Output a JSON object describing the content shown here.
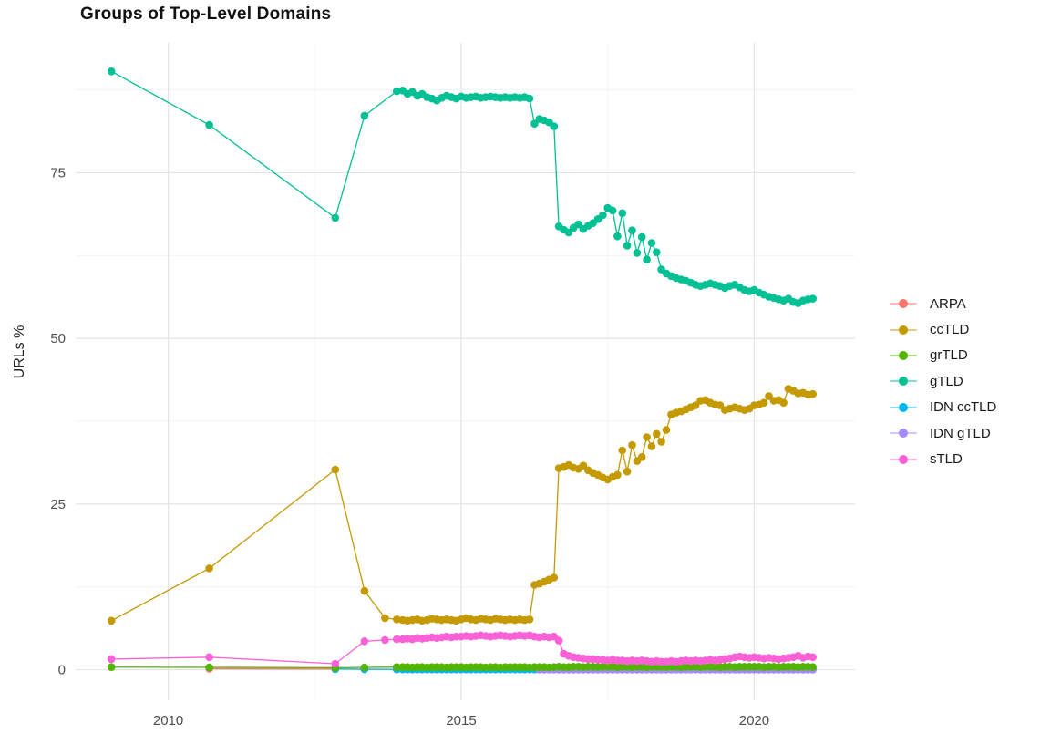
{
  "chart": {
    "title": "Groups of Top-Level Domains",
    "ylabel": "URLs %"
  },
  "legend": {
    "items": [
      {
        "label": "ARPA",
        "color": "#F8766D"
      },
      {
        "label": "ccTLD",
        "color": "#C49A00"
      },
      {
        "label": "grTLD",
        "color": "#53B400"
      },
      {
        "label": "gTLD",
        "color": "#00C094"
      },
      {
        "label": "IDN ccTLD",
        "color": "#00B6EB"
      },
      {
        "label": "IDN gTLD",
        "color": "#A58AFF"
      },
      {
        "label": "sTLD",
        "color": "#FB61D7"
      }
    ]
  },
  "chart_data": {
    "type": "line",
    "title": "Groups of Top-Level Domains",
    "xlabel": "",
    "ylabel": "URLs %",
    "xlim": [
      2008.42,
      2021.72
    ],
    "ylim": [
      -4.6,
      94.6
    ],
    "x_ticks": [
      2010,
      2015,
      2020
    ],
    "x_minor": [
      2012.5,
      2017.5
    ],
    "y_ticks": [
      0,
      25,
      50,
      75
    ],
    "y_minor": [
      12.5,
      37.5,
      62.5,
      87.5
    ],
    "grid": true,
    "legend_position": "right",
    "axis_text_color": "#4d4d4d",
    "grid_major_color": "#e4e4e4",
    "grid_minor_color": "#f3f3f3",
    "series": [
      {
        "name": "ARPA",
        "color": "#F8766D",
        "pre": [
          [
            2010.7,
            0.15
          ],
          [
            2012.85,
            0.1
          ],
          [
            2013.35,
            0.08
          ],
          [
            2013.9,
            0.06
          ]
        ],
        "monthly_start": 2014.0,
        "monthly_values": [
          0.05,
          0.05,
          0.05,
          0.05,
          0.05,
          0.05,
          0.05,
          0.05,
          0.05,
          0.05,
          0.05,
          0.05,
          0.05,
          0.05,
          0.05,
          0.05,
          0.05,
          0.05,
          0.05,
          0.05,
          0.05,
          0.05,
          0.05,
          0.05,
          0.05,
          0.05,
          0.05,
          0.05,
          0.05,
          0.05,
          0.05,
          0.05,
          0.05,
          0.05,
          0.05,
          0.05,
          0.05,
          0.05,
          0.05,
          0.05,
          0.05,
          0.05,
          0.05,
          0.05,
          0.05,
          0.05,
          0.05,
          0.05,
          0.05,
          0.05,
          0.05,
          0.05,
          0.05,
          0.05,
          0.05,
          0.05,
          0.05,
          0.05,
          0.05,
          0.05,
          0.05,
          0.05,
          0.05,
          0.05,
          0.05,
          0.05,
          0.05,
          0.05,
          0.05,
          0.05,
          0.05,
          0.05,
          0.05,
          0.05,
          0.05,
          0.05,
          0.05,
          0.05,
          0.05,
          0.05,
          0.05,
          0.05,
          0.05,
          0.05,
          0.05
        ]
      },
      {
        "name": "IDN ccTLD",
        "color": "#00B6EB",
        "pre": [
          [
            2012.85,
            0.1
          ],
          [
            2013.35,
            0.08
          ],
          [
            2013.9,
            0.06
          ]
        ],
        "monthly_start": 2014.0,
        "monthly_values": [
          0.05,
          0.05,
          0.05,
          0.05,
          0.05,
          0.05,
          0.05,
          0.05,
          0.05,
          0.05,
          0.05,
          0.05,
          0.05,
          0.05,
          0.05,
          0.05,
          0.05,
          0.05,
          0.05,
          0.05,
          0.05,
          0.05,
          0.05,
          0.05,
          0.05,
          0.05,
          0.05,
          0.05,
          0.05,
          0.05,
          0.05,
          0.05,
          0.05,
          0.05,
          0.05,
          0.05,
          0.05,
          0.05,
          0.05,
          0.05,
          0.05,
          0.05,
          0.05,
          0.05,
          0.05,
          0.05,
          0.05,
          0.05,
          0.05,
          0.05,
          0.05,
          0.05,
          0.05,
          0.05,
          0.05,
          0.05,
          0.05,
          0.05,
          0.05,
          0.05,
          0.05,
          0.05,
          0.05,
          0.05,
          0.05,
          0.05,
          0.05,
          0.05,
          0.05,
          0.05,
          0.05,
          0.05,
          0.05,
          0.05,
          0.05,
          0.05,
          0.05,
          0.05,
          0.05,
          0.05,
          0.05,
          0.05,
          0.05,
          0.05,
          0.05
        ]
      },
      {
        "name": "IDN gTLD",
        "color": "#A58AFF",
        "pre": [],
        "monthly_start": 2016.3333,
        "monthly_values": [
          0.02,
          0.02,
          0.02,
          0.02,
          0.02,
          0.02,
          0.02,
          0.02,
          0.02,
          0.02,
          0.02,
          0.02,
          0.02,
          0.02,
          0.02,
          0.02,
          0.02,
          0.02,
          0.02,
          0.02,
          0.02,
          0.02,
          0.02,
          0.02,
          0.02,
          0.02,
          0.02,
          0.02,
          0.02,
          0.02,
          0.02,
          0.02,
          0.02,
          0.02,
          0.02,
          0.02,
          0.02,
          0.02,
          0.02,
          0.02,
          0.02,
          0.02,
          0.02,
          0.02,
          0.02,
          0.02,
          0.02,
          0.02,
          0.02,
          0.02,
          0.02,
          0.02,
          0.02,
          0.02,
          0.02,
          0.02,
          0.02
        ]
      },
      {
        "name": "ccTLD",
        "color": "#C49A00",
        "pre": [
          [
            2009.03,
            7.4
          ],
          [
            2010.7,
            15.3
          ],
          [
            2012.85,
            30.2
          ],
          [
            2013.35,
            11.9
          ],
          [
            2013.7,
            7.8
          ],
          [
            2013.9,
            7.6
          ]
        ],
        "monthly_start": 2014.0,
        "monthly_values": [
          7.5,
          7.4,
          7.5,
          7.6,
          7.4,
          7.5,
          7.7,
          7.6,
          7.5,
          7.6,
          7.5,
          7.4,
          7.6,
          7.8,
          7.6,
          7.5,
          7.7,
          7.6,
          7.5,
          7.7,
          7.6,
          7.5,
          7.6,
          7.5,
          7.6,
          7.5,
          7.6,
          12.8,
          13.0,
          13.3,
          13.6,
          13.9,
          30.4,
          30.6,
          30.9,
          30.5,
          30.3,
          30.8,
          30.1,
          29.7,
          29.4,
          29.0,
          28.7,
          29.1,
          29.4,
          33.1,
          29.9,
          33.9,
          31.5,
          32.1,
          35.1,
          33.7,
          35.6,
          34.4,
          36.2,
          38.5,
          38.8,
          39.0,
          39.3,
          39.6,
          39.9,
          40.6,
          40.7,
          40.3,
          40.0,
          39.9,
          39.2,
          39.4,
          39.6,
          39.4,
          39.2,
          39.4,
          39.9,
          40.0,
          40.3,
          41.3,
          40.6,
          40.7,
          40.3,
          42.4,
          42.1,
          41.7,
          41.8,
          41.5,
          41.6
        ]
      },
      {
        "name": "gTLD",
        "color": "#00C094",
        "pre": [
          [
            2009.03,
            90.3
          ],
          [
            2010.7,
            82.2
          ],
          [
            2012.85,
            68.2
          ],
          [
            2013.35,
            83.6
          ],
          [
            2013.9,
            87.3
          ]
        ],
        "monthly_start": 2014.0,
        "monthly_values": [
          87.4,
          86.9,
          87.2,
          86.6,
          86.9,
          86.4,
          86.2,
          85.9,
          86.3,
          86.6,
          86.4,
          86.2,
          86.5,
          86.3,
          86.4,
          86.5,
          86.3,
          86.4,
          86.5,
          86.4,
          86.3,
          86.4,
          86.3,
          86.4,
          86.3,
          86.4,
          86.2,
          82.4,
          83.1,
          82.9,
          82.6,
          82.0,
          66.9,
          66.4,
          66.0,
          66.7,
          67.2,
          66.5,
          67.0,
          67.4,
          68.0,
          68.6,
          69.7,
          69.3,
          65.4,
          68.9,
          64.0,
          66.3,
          62.9,
          65.3,
          61.9,
          64.4,
          63.0,
          60.4,
          59.8,
          59.4,
          59.1,
          58.9,
          58.7,
          58.4,
          58.1,
          57.9,
          58.1,
          58.3,
          58.1,
          57.9,
          57.6,
          57.9,
          58.1,
          57.7,
          57.3,
          57.1,
          57.3,
          56.9,
          56.6,
          56.3,
          56.1,
          55.9,
          55.7,
          56.0,
          55.5,
          55.3,
          55.7,
          55.9,
          56.0
        ]
      },
      {
        "name": "grTLD",
        "color": "#53B400",
        "pre": [
          [
            2009.03,
            0.4
          ],
          [
            2010.7,
            0.35
          ],
          [
            2012.85,
            0.3
          ],
          [
            2013.35,
            0.35
          ],
          [
            2013.9,
            0.4
          ]
        ],
        "monthly_start": 2014.0,
        "monthly_values": [
          0.4,
          0.4,
          0.35,
          0.4,
          0.4,
          0.35,
          0.4,
          0.4,
          0.4,
          0.35,
          0.4,
          0.4,
          0.4,
          0.35,
          0.4,
          0.4,
          0.4,
          0.35,
          0.4,
          0.4,
          0.35,
          0.4,
          0.4,
          0.4,
          0.4,
          0.4,
          0.35,
          0.4,
          0.4,
          0.4,
          0.35,
          0.4,
          0.45,
          0.4,
          0.4,
          0.45,
          0.45,
          0.4,
          0.45,
          0.45,
          0.4,
          0.45,
          0.45,
          0.45,
          0.4,
          0.45,
          0.45,
          0.4,
          0.45,
          0.45,
          0.4,
          0.45,
          0.45,
          0.45,
          0.4,
          0.45,
          0.45,
          0.4,
          0.45,
          0.45,
          0.45,
          0.4,
          0.45,
          0.45,
          0.45,
          0.4,
          0.45,
          0.45,
          0.4,
          0.45,
          0.45,
          0.45,
          0.45,
          0.45,
          0.4,
          0.45,
          0.45,
          0.4,
          0.45,
          0.45,
          0.45,
          0.4,
          0.45,
          0.45,
          0.4
        ]
      },
      {
        "name": "sTLD",
        "color": "#FB61D7",
        "pre": [
          [
            2009.03,
            1.6
          ],
          [
            2010.7,
            1.9
          ],
          [
            2012.85,
            0.9
          ],
          [
            2013.35,
            4.3
          ],
          [
            2013.7,
            4.5
          ],
          [
            2013.9,
            4.6
          ]
        ],
        "monthly_start": 2014.0,
        "monthly_values": [
          4.6,
          4.7,
          4.6,
          4.8,
          4.7,
          4.8,
          4.9,
          4.8,
          4.9,
          5.0,
          4.9,
          5.0,
          5.0,
          5.1,
          5.0,
          5.1,
          5.2,
          5.1,
          5.0,
          5.1,
          5.2,
          5.1,
          5.0,
          5.1,
          5.2,
          5.1,
          5.2,
          5.0,
          4.9,
          5.0,
          4.9,
          5.0,
          4.4,
          2.4,
          2.1,
          1.9,
          1.8,
          1.7,
          1.6,
          1.6,
          1.5,
          1.5,
          1.4,
          1.5,
          1.4,
          1.4,
          1.3,
          1.4,
          1.3,
          1.4,
          1.3,
          1.2,
          1.3,
          1.2,
          1.2,
          1.3,
          1.2,
          1.3,
          1.4,
          1.3,
          1.4,
          1.3,
          1.4,
          1.5,
          1.4,
          1.5,
          1.6,
          1.7,
          1.9,
          2.0,
          1.9,
          1.8,
          1.9,
          1.8,
          1.7,
          1.8,
          1.7,
          1.6,
          1.7,
          1.8,
          1.9,
          2.1,
          1.8,
          2.0,
          1.9
        ]
      }
    ]
  }
}
